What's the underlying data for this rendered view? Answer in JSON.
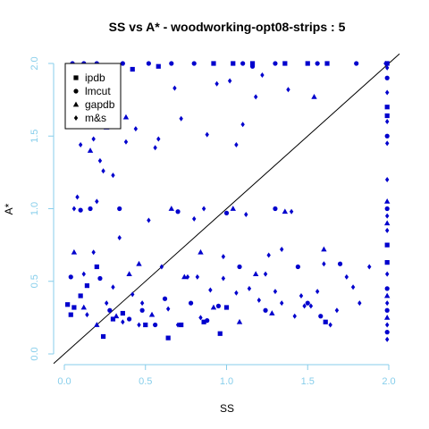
{
  "chart_data": {
    "type": "scatter",
    "title": "SS vs A* - woodworking-opt08-strips : 5",
    "xlabel": "SS",
    "ylabel": "A*",
    "xlim": [
      0,
      2
    ],
    "ylim": [
      0,
      2
    ],
    "x_ticks": [
      "0.0",
      "0.5",
      "1.0",
      "1.5",
      "2.0"
    ],
    "y_ticks": [
      "0.0",
      "0.5",
      "1.0",
      "1.5",
      "2.0"
    ],
    "tick_color": "#87ceeb",
    "point_color": "#0000cd",
    "legend_position": "top-left",
    "reference_line": "y = x",
    "series": [
      {
        "name": "ipdb",
        "marker": "square",
        "points": [
          [
            0.02,
            0.34
          ],
          [
            0.06,
            0.32
          ],
          [
            0.04,
            0.27
          ],
          [
            0.1,
            0.4
          ],
          [
            0.14,
            0.47
          ],
          [
            0.2,
            0.6
          ],
          [
            0.24,
            0.12
          ],
          [
            0.3,
            0.24
          ],
          [
            0.36,
            0.28
          ],
          [
            0.5,
            0.2
          ],
          [
            0.64,
            0.11
          ],
          [
            0.72,
            0.2
          ],
          [
            0.86,
            0.22
          ],
          [
            0.96,
            0.14
          ],
          [
            1.0,
            0.32
          ],
          [
            0.3,
            1.93
          ],
          [
            0.42,
            1.96
          ],
          [
            0.58,
            1.98
          ],
          [
            0.92,
            2.0
          ],
          [
            1.04,
            2.0
          ],
          [
            1.16,
            2.0
          ],
          [
            1.36,
            2.0
          ],
          [
            1.5,
            2.0
          ],
          [
            1.62,
            2.0
          ],
          [
            1.99,
            2.0
          ],
          [
            1.99,
            1.7
          ],
          [
            1.99,
            1.64
          ],
          [
            1.61,
            0.22
          ],
          [
            1.99,
            0.75
          ],
          [
            1.99,
            0.63
          ]
        ]
      },
      {
        "name": "lmcut",
        "marker": "circle",
        "points": [
          [
            0.04,
            0.53
          ],
          [
            0.1,
            0.99
          ],
          [
            0.16,
            1.0
          ],
          [
            0.22,
            0.52
          ],
          [
            0.28,
            0.3
          ],
          [
            0.34,
            1.0
          ],
          [
            0.4,
            0.24
          ],
          [
            0.48,
            0.3
          ],
          [
            0.56,
            0.2
          ],
          [
            0.62,
            0.38
          ],
          [
            0.7,
            0.98
          ],
          [
            0.78,
            0.35
          ],
          [
            0.88,
            0.23
          ],
          [
            0.95,
            0.33
          ],
          [
            1.0,
            0.97
          ],
          [
            1.08,
            0.6
          ],
          [
            1.16,
            1.98
          ],
          [
            1.24,
            0.3
          ],
          [
            1.3,
            1.0
          ],
          [
            1.44,
            0.6
          ],
          [
            1.5,
            0.35
          ],
          [
            1.58,
            0.26
          ],
          [
            1.7,
            0.62
          ],
          [
            1.99,
            0.3
          ],
          [
            1.99,
            0.15
          ],
          [
            1.99,
            1.0
          ],
          [
            1.99,
            0.45
          ],
          [
            1.99,
            1.5
          ],
          [
            1.99,
            1.9
          ],
          [
            0.05,
            2.0
          ],
          [
            0.12,
            2.0
          ],
          [
            0.2,
            2.0
          ],
          [
            0.36,
            2.0
          ],
          [
            0.52,
            2.0
          ],
          [
            0.66,
            2.0
          ],
          [
            0.8,
            2.0
          ],
          [
            1.1,
            2.0
          ],
          [
            1.3,
            2.0
          ],
          [
            1.56,
            2.0
          ],
          [
            1.8,
            2.0
          ]
        ]
      },
      {
        "name": "gapdb",
        "marker": "triangle",
        "points": [
          [
            0.16,
            1.4
          ],
          [
            0.26,
            1.56
          ],
          [
            0.38,
            1.63
          ],
          [
            0.4,
            0.55
          ],
          [
            0.54,
            0.27
          ],
          [
            0.66,
            1.0
          ],
          [
            0.74,
            0.53
          ],
          [
            0.92,
            0.32
          ],
          [
            1.04,
            1.0
          ],
          [
            1.18,
            0.55
          ],
          [
            1.28,
            0.28
          ],
          [
            1.36,
            0.98
          ],
          [
            1.54,
            1.77
          ],
          [
            1.6,
            0.72
          ],
          [
            1.99,
            0.4
          ],
          [
            1.99,
            0.25
          ],
          [
            1.99,
            1.05
          ],
          [
            1.99,
            0.9
          ],
          [
            0.06,
            0.7
          ],
          [
            0.12,
            0.32
          ],
          [
            0.2,
            0.2
          ],
          [
            0.32,
            0.26
          ],
          [
            0.46,
            0.62
          ],
          [
            0.84,
            0.7
          ],
          [
            1.08,
            0.22
          ]
        ]
      },
      {
        "name": "m&s",
        "marker": "diamond",
        "points": [
          [
            0.06,
            1.0
          ],
          [
            0.08,
            1.08
          ],
          [
            0.12,
            0.55
          ],
          [
            0.18,
            0.7
          ],
          [
            0.2,
            1.05
          ],
          [
            0.22,
            1.33
          ],
          [
            0.24,
            1.26
          ],
          [
            0.26,
            0.35
          ],
          [
            0.3,
            0.46
          ],
          [
            0.34,
            0.8
          ],
          [
            0.38,
            1.46
          ],
          [
            0.42,
            0.41
          ],
          [
            0.44,
            1.55
          ],
          [
            0.48,
            0.35
          ],
          [
            0.52,
            0.92
          ],
          [
            0.56,
            1.42
          ],
          [
            0.6,
            0.6
          ],
          [
            0.64,
            0.31
          ],
          [
            0.68,
            1.83
          ],
          [
            0.72,
            1.62
          ],
          [
            0.76,
            0.53
          ],
          [
            0.8,
            0.93
          ],
          [
            0.84,
            0.25
          ],
          [
            0.88,
            1.51
          ],
          [
            0.9,
            0.44
          ],
          [
            0.94,
            1.86
          ],
          [
            0.98,
            0.52
          ],
          [
            1.02,
            1.88
          ],
          [
            1.06,
            1.44
          ],
          [
            1.1,
            1.58
          ],
          [
            1.14,
            0.45
          ],
          [
            1.18,
            1.77
          ],
          [
            1.22,
            1.92
          ],
          [
            1.26,
            0.68
          ],
          [
            1.3,
            0.43
          ],
          [
            1.34,
            0.72
          ],
          [
            1.38,
            1.82
          ],
          [
            1.42,
            0.26
          ],
          [
            1.46,
            0.4
          ],
          [
            1.52,
            0.33
          ],
          [
            1.56,
            0.43
          ],
          [
            1.6,
            0.62
          ],
          [
            1.64,
            0.2
          ],
          [
            1.68,
            0.3
          ],
          [
            1.74,
            0.53
          ],
          [
            1.78,
            0.46
          ],
          [
            1.82,
            0.35
          ],
          [
            1.88,
            0.6
          ],
          [
            1.99,
            0.1
          ],
          [
            1.99,
            0.2
          ],
          [
            1.99,
            0.35
          ],
          [
            1.99,
            0.55
          ],
          [
            1.99,
            0.85
          ],
          [
            1.99,
            0.95
          ],
          [
            1.99,
            1.2
          ],
          [
            1.99,
            1.45
          ],
          [
            1.99,
            1.6
          ],
          [
            1.99,
            1.8
          ],
          [
            1.99,
            1.97
          ],
          [
            1.98,
            2.0
          ],
          [
            0.1,
            1.44
          ],
          [
            0.18,
            1.48
          ],
          [
            0.3,
            1.23
          ],
          [
            0.58,
            1.48
          ],
          [
            0.86,
            1.0
          ],
          [
            0.98,
            0.67
          ],
          [
            1.12,
            0.96
          ],
          [
            1.2,
            0.37
          ],
          [
            1.34,
            0.35
          ],
          [
            1.48,
            0.33
          ],
          [
            0.14,
            0.27
          ],
          [
            0.36,
            0.22
          ],
          [
            0.46,
            0.2
          ],
          [
            0.7,
            0.2
          ],
          [
            0.82,
            0.53
          ],
          [
            1.06,
            0.42
          ],
          [
            1.24,
            0.55
          ],
          [
            1.4,
            0.98
          ]
        ]
      }
    ]
  }
}
